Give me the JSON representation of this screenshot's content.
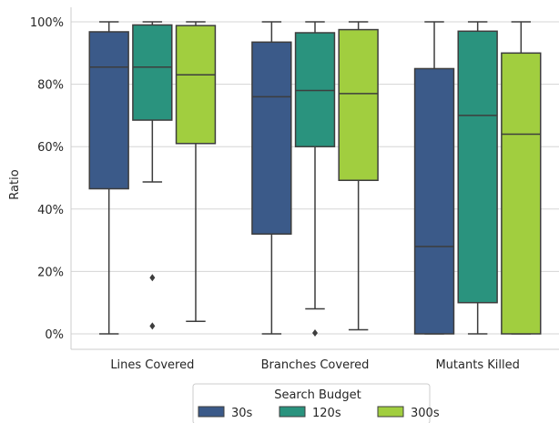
{
  "chart_data": {
    "type": "box",
    "ylabel": "Ratio",
    "ylim": [
      -0.05,
      1.05
    ],
    "yticks": [
      0,
      0.2,
      0.4,
      0.6,
      0.8,
      1.0
    ],
    "yticklabels": [
      "0%",
      "20%",
      "40%",
      "60%",
      "80%",
      "100%"
    ],
    "grid": true,
    "categories": [
      "Lines Covered",
      "Branches Covered",
      "Mutants Killed"
    ],
    "legend": {
      "title": "Search Budget",
      "position": "bottom-center"
    },
    "series": [
      {
        "name": "30s",
        "color": "#3b5a89",
        "boxes": [
          {
            "whislo": 0.0,
            "q1": 0.465,
            "med": 0.855,
            "q3": 0.968,
            "whishi": 1.0,
            "fliers": []
          },
          {
            "whislo": 0.0,
            "q1": 0.32,
            "med": 0.76,
            "q3": 0.935,
            "whishi": 1.0,
            "fliers": []
          },
          {
            "whislo": 0.0,
            "q1": 0.0,
            "med": 0.28,
            "q3": 0.85,
            "whishi": 1.0,
            "fliers": []
          }
        ]
      },
      {
        "name": "120s",
        "color": "#2a937e",
        "boxes": [
          {
            "whislo": 0.487,
            "q1": 0.685,
            "med": 0.855,
            "q3": 0.99,
            "whishi": 1.0,
            "fliers": [
              0.18,
              0.025
            ]
          },
          {
            "whislo": 0.08,
            "q1": 0.6,
            "med": 0.78,
            "q3": 0.965,
            "whishi": 1.0,
            "fliers": [
              0.003
            ]
          },
          {
            "whislo": 0.0,
            "q1": 0.1,
            "med": 0.7,
            "q3": 0.97,
            "whishi": 1.0,
            "fliers": []
          }
        ]
      },
      {
        "name": "300s",
        "color": "#a1ce3f",
        "boxes": [
          {
            "whislo": 0.04,
            "q1": 0.61,
            "med": 0.83,
            "q3": 0.988,
            "whishi": 1.0,
            "fliers": []
          },
          {
            "whislo": 0.013,
            "q1": 0.492,
            "med": 0.77,
            "q3": 0.975,
            "whishi": 1.0,
            "fliers": []
          },
          {
            "whislo": 0.0,
            "q1": 0.0,
            "med": 0.64,
            "q3": 0.9,
            "whishi": 1.0,
            "fliers": []
          }
        ]
      }
    ]
  }
}
